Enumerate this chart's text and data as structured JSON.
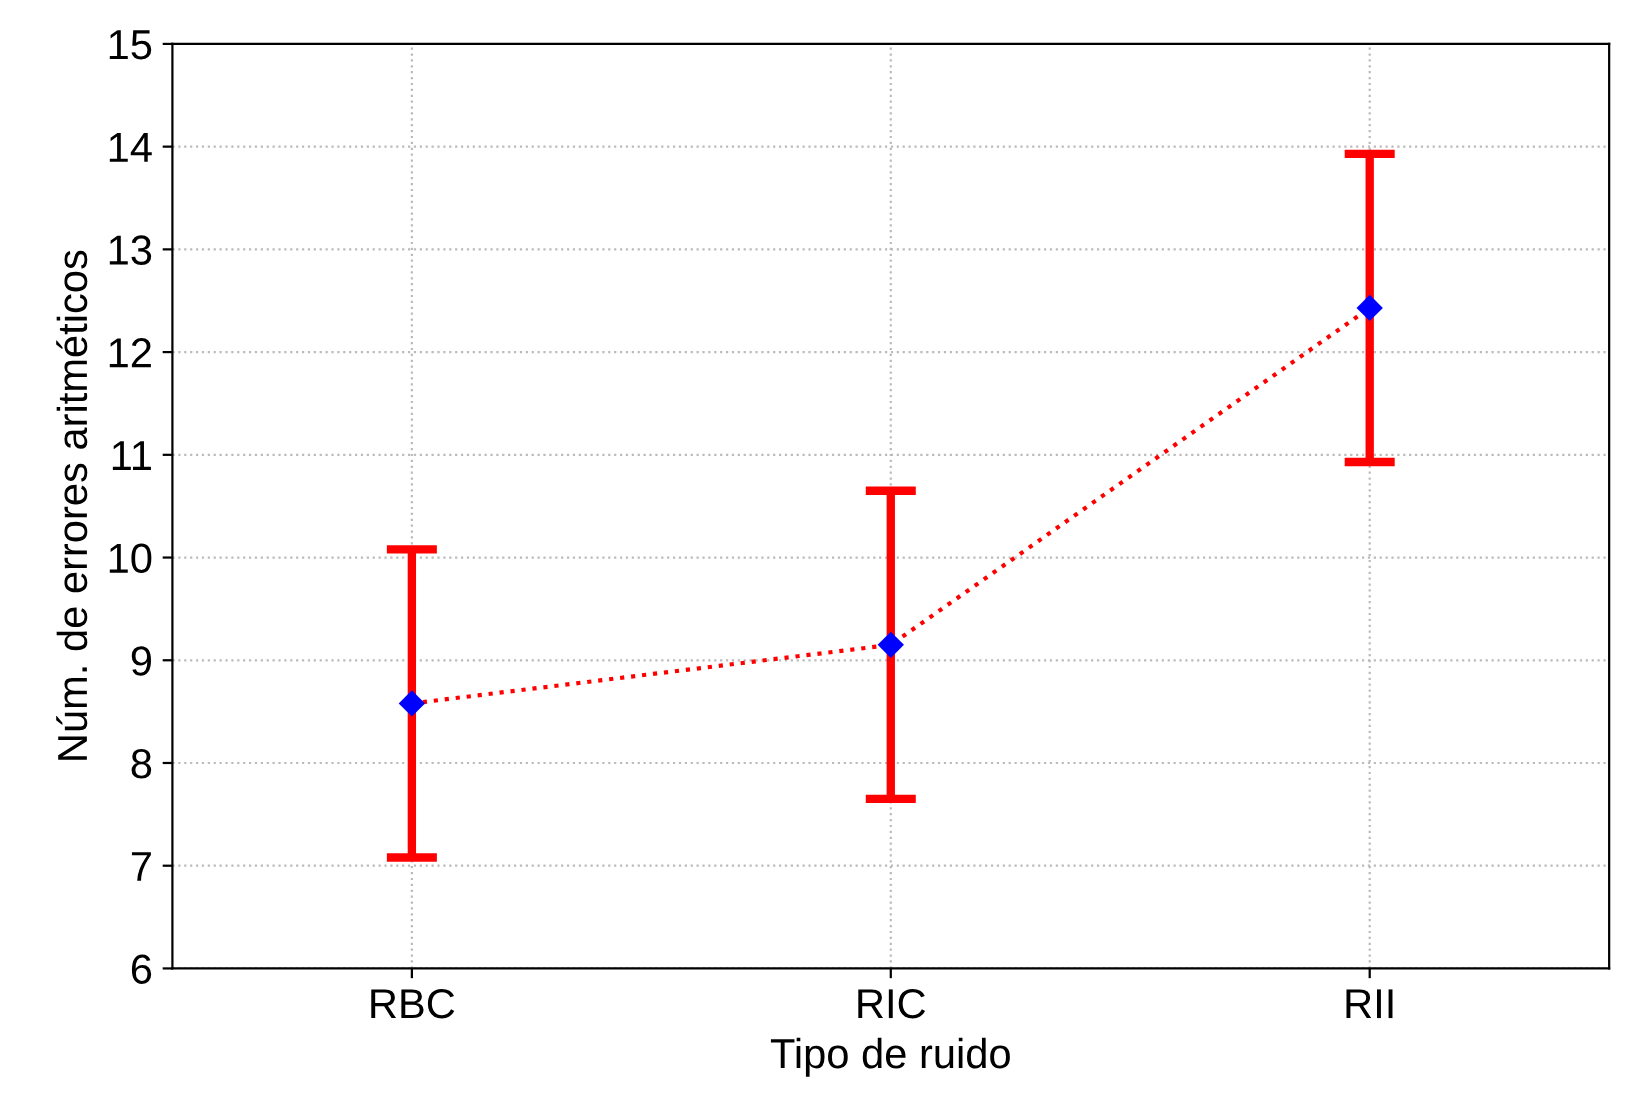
{
  "chart_data": {
    "type": "line",
    "xlabel": "Tipo de ruido",
    "ylabel": "Núm. de errores aritméticos",
    "categories": [
      "RBC",
      "RIC",
      "RII"
    ],
    "series": [
      {
        "color": "#ff0000",
        "colors": [
          "#0000ff",
          "#0000ff",
          "#0000ff"
        ],
        "values": [
          8.58,
          9.15,
          12.43
        ],
        "errors": [
          1.5,
          1.5,
          1.5
        ]
      }
    ],
    "ylim": [
      6,
      15
    ],
    "yticks": [
      6,
      7,
      8,
      9,
      10,
      11,
      12,
      13,
      14,
      15
    ],
    "grid": true,
    "marker": "diamond",
    "line_style": "dotted",
    "legend": false
  }
}
